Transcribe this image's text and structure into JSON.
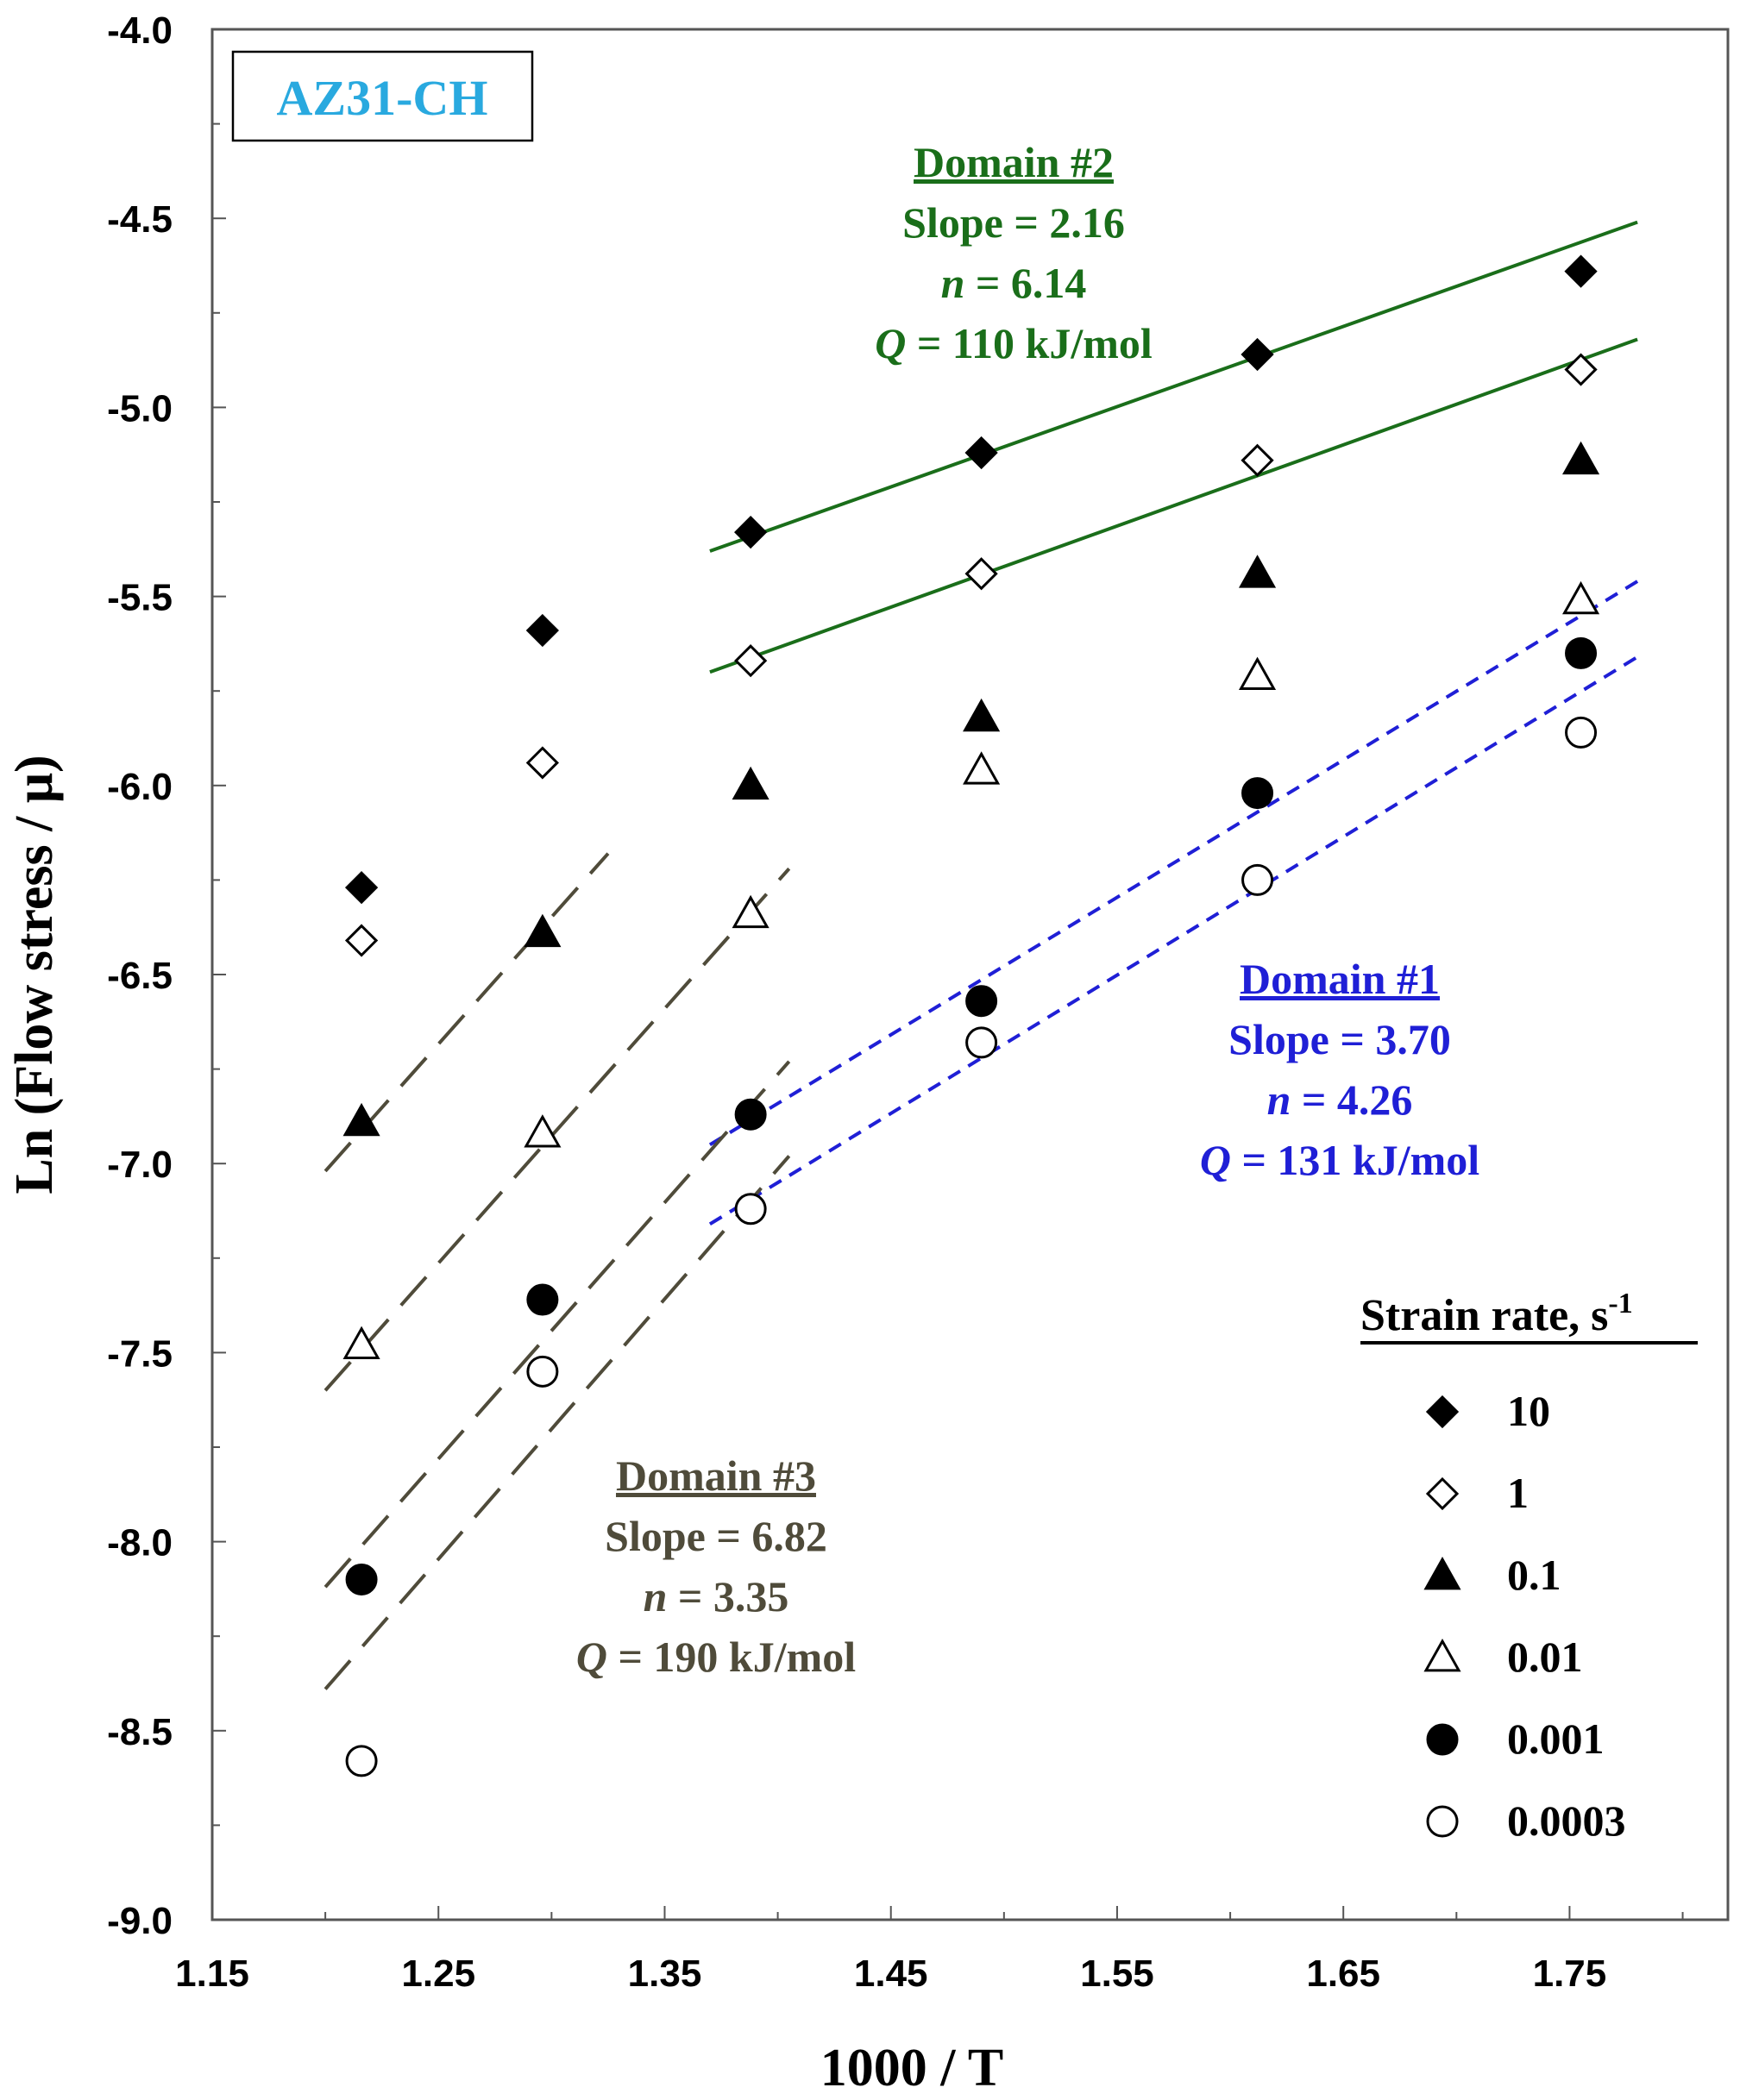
{
  "chart_data": {
    "type": "scatter",
    "title": "AZ31-CH",
    "xlabel": "1000 / T",
    "ylabel": "Ln (Flow stress / μ)",
    "xlim": [
      1.15,
      1.82
    ],
    "ylim": [
      -9.0,
      -4.0
    ],
    "x_ticks": [
      "1.15",
      "1.25",
      "1.35",
      "1.45",
      "1.55",
      "1.65",
      "1.75"
    ],
    "y_ticks": [
      "-4.0",
      "-4.5",
      "-5.0",
      "-5.5",
      "-6.0",
      "-6.5",
      "-7.0",
      "-7.5",
      "-8.0",
      "-8.5",
      "-9.0"
    ],
    "x": [
      1.216,
      1.296,
      1.388,
      1.49,
      1.612,
      1.755
    ],
    "legend": {
      "title_main": "Strain rate, s",
      "title_sup": "-1",
      "position": "bottom-right"
    },
    "series": [
      {
        "name": "10",
        "marker": "diamond-filled",
        "values": [
          -6.27,
          -5.59,
          -5.33,
          -5.12,
          -4.86,
          -4.64
        ]
      },
      {
        "name": "1",
        "marker": "diamond-open",
        "values": [
          -6.41,
          -5.94,
          -5.67,
          -5.44,
          -5.14,
          -4.9
        ]
      },
      {
        "name": "0.1",
        "marker": "triangle-filled",
        "values": [
          -6.89,
          -6.39,
          -6.0,
          -5.82,
          -5.44,
          -5.14
        ]
      },
      {
        "name": "0.01",
        "marker": "triangle-open",
        "values": [
          -7.48,
          -6.92,
          -6.34,
          -5.96,
          -5.71,
          -5.51
        ]
      },
      {
        "name": "0.001",
        "marker": "circle-filled",
        "values": [
          -8.1,
          -7.36,
          -6.87,
          -6.57,
          -6.02,
          -5.65
        ]
      },
      {
        "name": "0.0003",
        "marker": "circle-open",
        "values": [
          -8.58,
          -7.55,
          -7.12,
          -6.68,
          -6.25,
          -5.86
        ]
      }
    ],
    "fit_lines": [
      {
        "domain": "2",
        "style": "solid-green",
        "color": "#1a6e1a",
        "x": [
          1.37,
          1.78
        ],
        "y": [
          -5.38,
          -4.51
        ]
      },
      {
        "domain": "2",
        "style": "solid-green",
        "color": "#1a6e1a",
        "x": [
          1.37,
          1.78
        ],
        "y": [
          -5.7,
          -4.82
        ]
      },
      {
        "domain": "1",
        "style": "dashed-blue",
        "color": "#1f1fd6",
        "x": [
          1.37,
          1.78
        ],
        "y": [
          -6.95,
          -5.46
        ]
      },
      {
        "domain": "1",
        "style": "dashed-blue",
        "color": "#1f1fd6",
        "x": [
          1.37,
          1.78
        ],
        "y": [
          -7.16,
          -5.66
        ]
      },
      {
        "domain": "3",
        "style": "dashed-olive",
        "color": "#4f4b3a",
        "x": [
          1.2,
          1.325
        ],
        "y": [
          -7.02,
          -6.18
        ]
      },
      {
        "domain": "3",
        "style": "dashed-olive",
        "color": "#4f4b3a",
        "x": [
          1.2,
          1.405
        ],
        "y": [
          -7.6,
          -6.22
        ]
      },
      {
        "domain": "3",
        "style": "dashed-olive",
        "color": "#4f4b3a",
        "x": [
          1.2,
          1.405
        ],
        "y": [
          -8.12,
          -6.73
        ]
      },
      {
        "domain": "3",
        "style": "dashed-olive",
        "color": "#4f4b3a",
        "x": [
          1.2,
          1.405
        ],
        "y": [
          -8.39,
          -6.98
        ]
      }
    ],
    "annotations": {
      "domain2": {
        "title": "Domain #2",
        "slope": "Slope = 2.16",
        "n_value": "= 6.14",
        "q_value": "= 110 kJ/mol",
        "color": "#1a6e1a"
      },
      "domain1": {
        "title": "Domain #1",
        "slope": "Slope = 3.70",
        "n_value": "= 4.26",
        "q_value": "= 131 kJ/mol",
        "color": "#1f1fd6"
      },
      "domain3": {
        "title": "Domain #3",
        "slope": "Slope = 6.82",
        "n_value": "= 3.35",
        "q_value": "= 190 kJ/mol",
        "color": "#4f4b3a"
      }
    },
    "title_color": "#29a9df"
  }
}
